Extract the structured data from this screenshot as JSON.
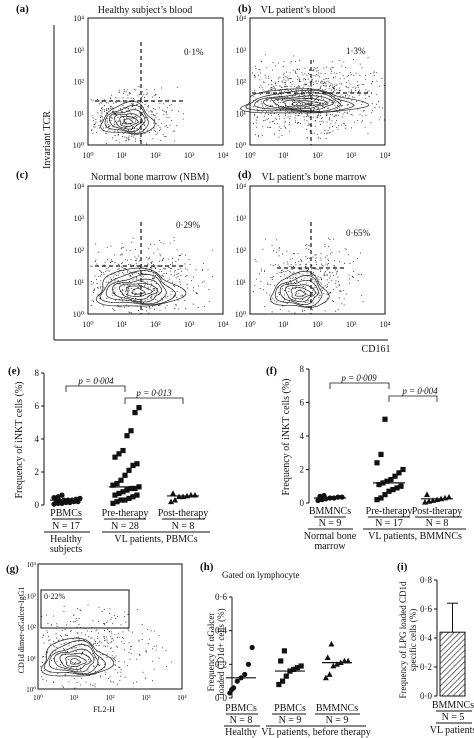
{
  "flow": {
    "a": {
      "label": "(a)",
      "title": "Healthy subject’s blood",
      "pct": "0·1%"
    },
    "b": {
      "label": "(b)",
      "title": "VL patient’s blood",
      "pct": "1·3%"
    },
    "c": {
      "label": "(c)",
      "title": "Normal bone marrow (NBM)",
      "pct": "0·29%"
    },
    "d": {
      "label": "(d)",
      "title": "VL patient’s bone marrow",
      "pct": "0·65%"
    },
    "ylabel": "Invariant TCR",
    "xlabel": "CD161",
    "ticks": [
      "10⁰",
      "10¹",
      "10²",
      "10³",
      "10⁴"
    ]
  },
  "panel_e": {
    "label": "(e)",
    "ylabel": "Frequency of iNKT cells (%)",
    "yticks": [
      "0",
      "2",
      "4",
      "6",
      "8"
    ],
    "cats": [
      "PBMCs",
      "Pre-therapy",
      "Post-therapy"
    ],
    "ns": [
      "N = 17",
      "N = 28",
      "N = 8"
    ],
    "sig1": "p = 0·004",
    "sig2": "p = 0·013",
    "group1": "Healthy",
    "group1b": "subjects",
    "group2": "VL patients, PBMCs"
  },
  "panel_f": {
    "label": "(f)",
    "ylabel": "Frequency of iNKT cells (%)",
    "yticks": [
      "0",
      "2",
      "4",
      "6",
      "8"
    ],
    "cats": [
      "BMMNCs",
      "Pre-therapy",
      "Post-therapy"
    ],
    "ns": [
      "N = 9",
      "N = 17",
      "N = 8"
    ],
    "sig1": "p = 0·009",
    "sig2": "p = 0·004",
    "group1": "Normal bone",
    "group1b": "marrow",
    "group2": "VL patients, BMMNCs"
  },
  "panel_g": {
    "label": "(g)",
    "ylabel": "CD1d dimer-αGalcer-IgG1",
    "xlabel": "FL2-H",
    "gate": "0·22%",
    "ticks": [
      "10⁰",
      "10¹",
      "10²",
      "10³",
      "10⁴"
    ]
  },
  "panel_h": {
    "label": "(h)",
    "subtitle": "Gated on lymphocyte",
    "ylabel1": "Frequency of αGalcer",
    "ylabel2": "loaded CD1d+ cells (%)",
    "yticks": [
      "0·0",
      "0·2",
      "0·4",
      "0·6"
    ],
    "cats": [
      "PBMCs",
      "PBMCs",
      "BMMNCs"
    ],
    "ns": [
      "N = 8",
      "N = 9",
      "N = 9"
    ],
    "group1": "Healthy",
    "group2": "VL patients, before therapy"
  },
  "panel_i": {
    "label": "(i)",
    "ylabel1": "Frequency of LPG loaded CD1d",
    "ylabel2": "specific cells (%)",
    "yticks": [
      "0·0",
      "0·2",
      "0·4",
      "0·6",
      "0·8"
    ],
    "cat": "BMMNCs",
    "n": "N = 5",
    "group": "VL patients"
  },
  "chart_data": [
    {
      "type": "scatter",
      "panel": "e",
      "ylabel": "Frequency of iNKT cells (%)",
      "ylim": [
        0,
        8
      ],
      "categories": [
        "PBMCs",
        "Pre-therapy",
        "Post-therapy"
      ],
      "medians": [
        0.3,
        1.1,
        0.55
      ],
      "series": [
        {
          "values": [
            0.05,
            0.1,
            0.1,
            0.15,
            0.15,
            0.2,
            0.2,
            0.25,
            0.25,
            0.3,
            0.3,
            0.3,
            0.35,
            0.4,
            0.45,
            0.5,
            0.6
          ]
        },
        {
          "values": [
            0.1,
            0.2,
            0.3,
            0.3,
            0.4,
            0.5,
            0.6,
            0.6,
            0.7,
            0.8,
            0.9,
            1.0,
            1.0,
            1.1,
            1.2,
            1.3,
            1.5,
            1.8,
            2.1,
            2.4,
            2.5,
            2.9,
            3.1,
            3.3,
            4.2,
            4.5,
            5.6,
            5.9
          ]
        },
        {
          "values": [
            0.2,
            0.3,
            0.5,
            0.5,
            0.55,
            0.6,
            0.6,
            0.7
          ]
        }
      ],
      "annotations": [
        "p = 0·004",
        "p = 0·013"
      ]
    },
    {
      "type": "scatter",
      "panel": "f",
      "ylabel": "Frequency of iNKT cells (%)",
      "ylim": [
        0,
        8
      ],
      "categories": [
        "BMMNCs",
        "Pre-therapy",
        "Post-therapy"
      ],
      "medians": [
        0.3,
        1.2,
        0.25
      ],
      "series": [
        {
          "values": [
            0.15,
            0.2,
            0.25,
            0.3,
            0.3,
            0.35,
            0.35,
            0.4,
            0.45
          ]
        },
        {
          "values": [
            0.2,
            0.3,
            0.5,
            0.7,
            0.8,
            0.9,
            1.0,
            1.1,
            1.2,
            1.3,
            1.4,
            1.6,
            1.8,
            2.0,
            2.4,
            2.9,
            5.0
          ]
        },
        {
          "values": [
            0.05,
            0.1,
            0.15,
            0.2,
            0.25,
            0.3,
            0.35,
            0.5
          ]
        }
      ],
      "annotations": [
        "p = 0·009",
        "p = 0·004"
      ]
    },
    {
      "type": "scatter",
      "panel": "h",
      "ylabel": "Frequency of αGalcer loaded CD1d+ cells (%)",
      "ylim": [
        0,
        0.6
      ],
      "categories": [
        "PBMCs",
        "PBMCs",
        "BMMNCs"
      ],
      "medians": [
        0.12,
        0.16,
        0.21
      ],
      "series": [
        {
          "values": [
            0.03,
            0.06,
            0.1,
            0.12,
            0.14,
            0.2,
            0.3,
            0.05
          ]
        },
        {
          "values": [
            0.08,
            0.1,
            0.13,
            0.16,
            0.17,
            0.18,
            0.19,
            0.22,
            0.28
          ]
        },
        {
          "values": [
            0.12,
            0.14,
            0.19,
            0.2,
            0.21,
            0.22,
            0.22,
            0.24,
            0.32
          ]
        }
      ]
    },
    {
      "type": "bar",
      "panel": "i",
      "ylabel": "Frequency of LPG loaded CD1d specific cells (%)",
      "ylim": [
        0,
        0.8
      ],
      "categories": [
        "BMMNCs"
      ],
      "values": [
        0.44
      ],
      "error": [
        0.2
      ]
    }
  ]
}
